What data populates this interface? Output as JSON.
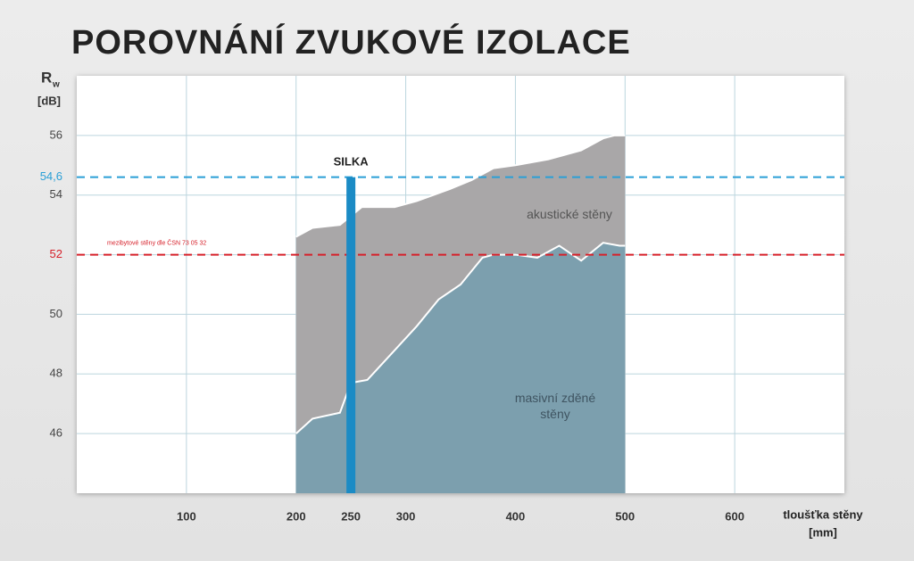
{
  "chart_data": {
    "type": "area",
    "title": "POROVNÁNÍ ZVUKOVÉ IZOLACE",
    "ylabel": "R",
    "ylabel_subscript": "w",
    "yunit": "[dB]",
    "xlabel": "tloušťka stěny",
    "xunit": "[mm]",
    "xlim": [
      0,
      700
    ],
    "ylim": [
      44,
      58
    ],
    "xticks": [
      100,
      200,
      300,
      400,
      500,
      600
    ],
    "yticks": [
      46,
      48,
      50,
      52,
      54,
      56
    ],
    "grid": true,
    "series": [
      {
        "name": "akustické stěny",
        "color": "#a9a7a8",
        "x": [
          200,
          215,
          240,
          260,
          290,
          310,
          340,
          360,
          380,
          400,
          430,
          460,
          480,
          490,
          500
        ],
        "values": [
          52.6,
          52.9,
          53.0,
          53.6,
          53.6,
          53.8,
          54.2,
          54.5,
          54.9,
          55.0,
          55.2,
          55.5,
          55.9,
          56.0,
          56.0
        ]
      },
      {
        "name": "masivní zděné stěny",
        "color": "#7c9fae",
        "x": [
          200,
          215,
          240,
          250,
          265,
          290,
          310,
          330,
          350,
          370,
          380,
          400,
          420,
          440,
          460,
          480,
          495,
          500
        ],
        "values": [
          46.0,
          46.5,
          46.7,
          47.7,
          47.8,
          48.8,
          49.6,
          50.5,
          51.0,
          51.9,
          52.0,
          52.0,
          51.9,
          52.3,
          51.8,
          52.4,
          52.3,
          52.3
        ]
      }
    ],
    "bars": [
      {
        "name": "SILKA",
        "x": 250,
        "value": 54.6,
        "color": "#1b8bc5"
      }
    ],
    "reference_lines": [
      {
        "value": {
          "value": 54.6,
          "label": "54,6"
        },
        "color": "#2a9fd6"
      },
      {
        "value": 52,
        "color": "#d6202a",
        "label": "mezibytové stěny dle ČSN 73 05 32"
      }
    ]
  }
}
